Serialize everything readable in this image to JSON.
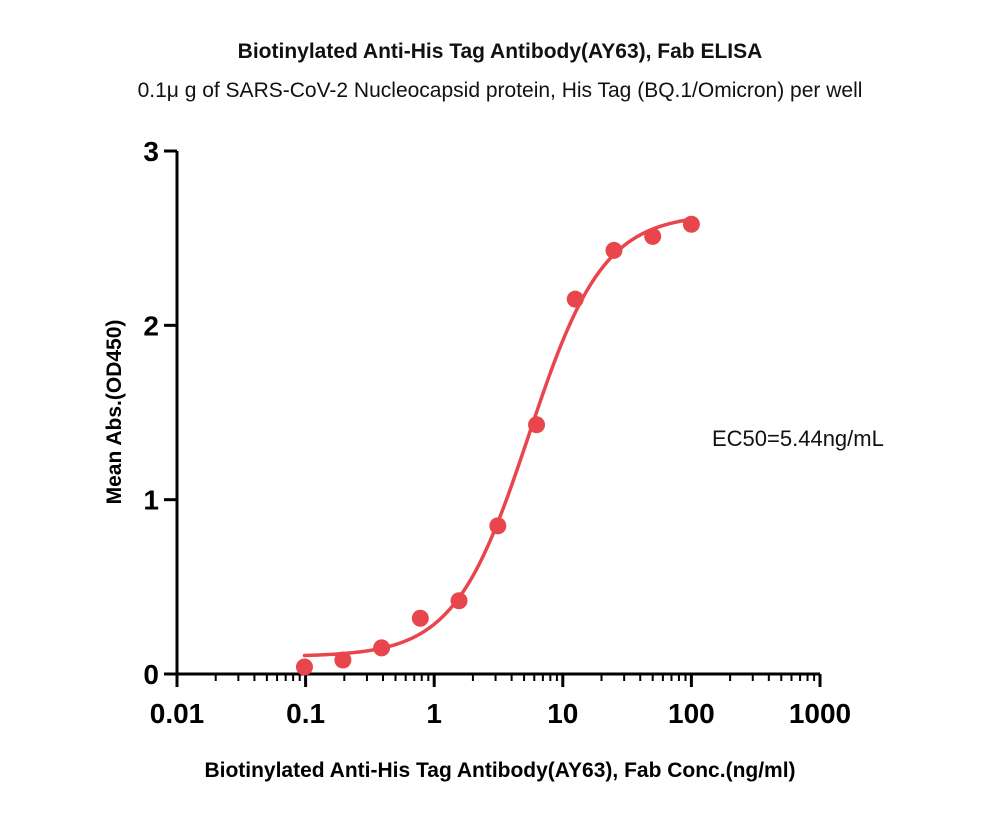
{
  "chart_data": {
    "type": "scatter",
    "title": "Biotinylated Anti-His Tag Antibody(AY63), Fab ELISA",
    "subtitle": "0.1μ g of SARS-CoV-2 Nucleocapsid protein, His Tag (BQ.1/Omicron) per well",
    "xlabel": "Biotinylated Anti-His Tag Antibody(AY63), Fab Conc.(ng/ml)",
    "ylabel": "Mean Abs.(OD450)",
    "x_scale": "log",
    "xlim": [
      0.01,
      1000
    ],
    "ylim": [
      0,
      3
    ],
    "x_ticks": [
      {
        "value": 0.01,
        "label": "0.01"
      },
      {
        "value": 0.1,
        "label": "0.1"
      },
      {
        "value": 1,
        "label": "1"
      },
      {
        "value": 10,
        "label": "10"
      },
      {
        "value": 100,
        "label": "100"
      },
      {
        "value": 1000,
        "label": "1000"
      }
    ],
    "y_ticks": [
      {
        "value": 0,
        "label": "0"
      },
      {
        "value": 1,
        "label": "1"
      },
      {
        "value": 2,
        "label": "2"
      },
      {
        "value": 3,
        "label": "3"
      }
    ],
    "grid": false,
    "series": [
      {
        "color": "#e8454c",
        "x": [
          0.098,
          0.195,
          0.39,
          0.78,
          1.56,
          3.125,
          6.25,
          12.5,
          25,
          50,
          100
        ],
        "y": [
          0.04,
          0.08,
          0.15,
          0.32,
          0.42,
          0.85,
          1.43,
          2.15,
          2.43,
          2.51,
          2.58
        ]
      }
    ],
    "fit_curve": {
      "model": "4PL",
      "color": "#e8454c",
      "bottom": 0.1,
      "top": 2.64,
      "ec50": 5.44,
      "hill": 1.5,
      "x_range": [
        0.098,
        100
      ]
    },
    "annotations": [
      {
        "text": "EC50=5.44ng/mL"
      }
    ]
  }
}
